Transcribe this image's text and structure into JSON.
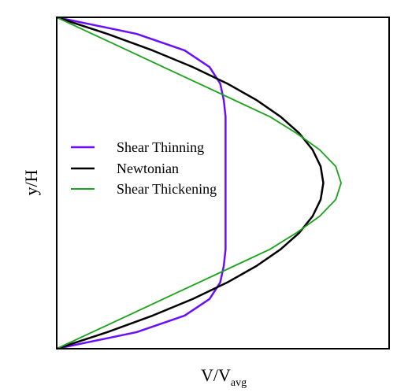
{
  "chart_data": {
    "type": "line",
    "title": "",
    "xlabel": {
      "main": "V/V",
      "subscript": "avg"
    },
    "ylabel": "y/H",
    "xticks": false,
    "yticks": false,
    "grid": false,
    "xlim": [
      0,
      1.6
    ],
    "ylim": [
      0,
      1
    ],
    "legend": {
      "placement": "middle-left"
    },
    "y": [
      0,
      0.05,
      0.1,
      0.15,
      0.2,
      0.25,
      0.3,
      0.35,
      0.4,
      0.45,
      0.5,
      0.55,
      0.6,
      0.65,
      0.7,
      0.75,
      0.8,
      0.85,
      0.9,
      0.95,
      1
    ],
    "series": [
      {
        "name": "Shear Thinning",
        "color": "#6a0dfb",
        "x": [
          0,
          0.45,
          0.72,
          0.86,
          0.92,
          0.94,
          0.95,
          0.95,
          0.95,
          0.95,
          0.95,
          0.95,
          0.95,
          0.95,
          0.95,
          0.94,
          0.92,
          0.86,
          0.72,
          0.45,
          0
        ]
      },
      {
        "name": "Newtonian",
        "color": "#000000",
        "x": [
          0,
          0.285,
          0.54,
          0.765,
          0.96,
          1.125,
          1.26,
          1.365,
          1.44,
          1.485,
          1.5,
          1.485,
          1.44,
          1.365,
          1.26,
          1.125,
          0.96,
          0.765,
          0.54,
          0.285,
          0
        ]
      },
      {
        "name": "Shear Thickening",
        "color": "#1aa31a",
        "x": [
          0,
          0.2,
          0.4,
          0.6,
          0.8,
          1.0,
          1.2,
          1.35,
          1.48,
          1.57,
          1.6,
          1.57,
          1.48,
          1.35,
          1.2,
          1.0,
          0.8,
          0.6,
          0.4,
          0.2,
          0
        ]
      }
    ]
  }
}
